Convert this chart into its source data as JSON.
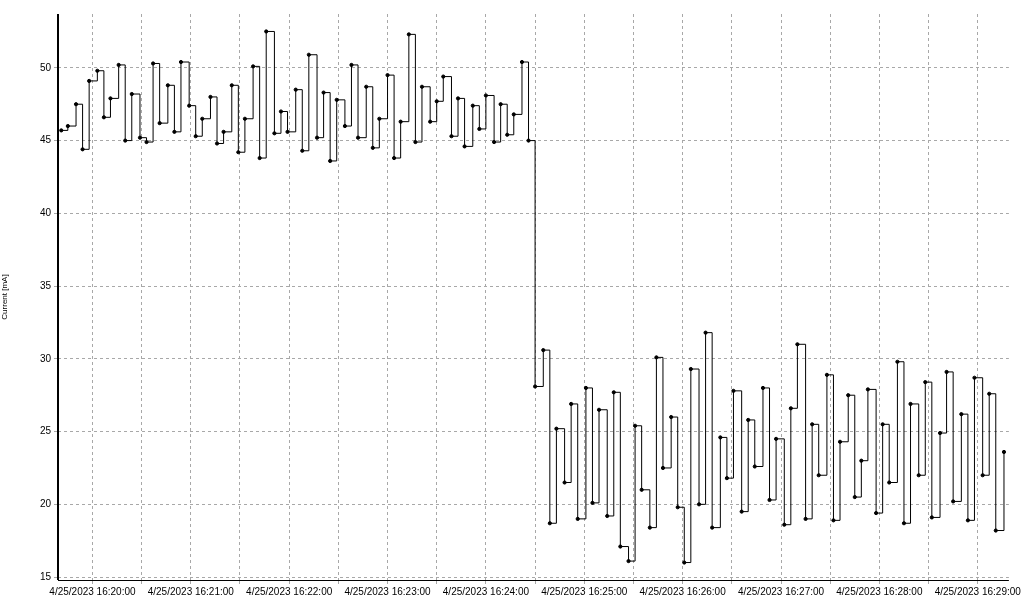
{
  "chart_data": {
    "type": "step",
    "ylabel": "Current [mA]",
    "marker": "circle",
    "grid": true,
    "legend": false,
    "xlim": [
      "2023-04-25T16:19:39",
      "2023-04-25T16:29:19"
    ],
    "ylim": [
      14.8,
      53.7
    ],
    "yticks": [
      15,
      20,
      25,
      30,
      35,
      40,
      45,
      50
    ],
    "xticks": [
      {
        "value": "2023-04-25T16:20:00",
        "label": "4/25/2023 16:20:00"
      },
      {
        "value": "2023-04-25T16:20:30",
        "label": null
      },
      {
        "value": "2023-04-25T16:21:00",
        "label": "4/25/2023 16:21:00"
      },
      {
        "value": "2023-04-25T16:21:30",
        "label": null
      },
      {
        "value": "2023-04-25T16:22:00",
        "label": "4/25/2023 16:22:00"
      },
      {
        "value": "2023-04-25T16:22:30",
        "label": null
      },
      {
        "value": "2023-04-25T16:23:00",
        "label": "4/25/2023 16:23:00"
      },
      {
        "value": "2023-04-25T16:23:30",
        "label": null
      },
      {
        "value": "2023-04-25T16:24:00",
        "label": "4/25/2023 16:24:00"
      },
      {
        "value": "2023-04-25T16:24:30",
        "label": null
      },
      {
        "value": "2023-04-25T16:25:00",
        "label": "4/25/2023 16:25:00"
      },
      {
        "value": "2023-04-25T16:25:30",
        "label": null
      },
      {
        "value": "2023-04-25T16:26:00",
        "label": "4/25/2023 16:26:00"
      },
      {
        "value": "2023-04-25T16:26:30",
        "label": null
      },
      {
        "value": "2023-04-25T16:27:00",
        "label": "4/25/2023 16:27:00"
      },
      {
        "value": "2023-04-25T16:27:30",
        "label": null
      },
      {
        "value": "2023-04-25T16:28:00",
        "label": "4/25/2023 16:28:00"
      },
      {
        "value": "2023-04-25T16:28:30",
        "label": null
      },
      {
        "value": "2023-04-25T16:29:00",
        "label": "4/25/2023 16:29:00"
      }
    ],
    "series": [
      {
        "color": "#000000",
        "x": [
          "2023-04-25T16:19:41",
          "2023-04-25T16:19:45",
          "2023-04-25T16:19:50",
          "2023-04-25T16:19:54",
          "2023-04-25T16:19:58",
          "2023-04-25T16:20:03",
          "2023-04-25T16:20:07",
          "2023-04-25T16:20:11",
          "2023-04-25T16:20:16",
          "2023-04-25T16:20:20",
          "2023-04-25T16:20:24",
          "2023-04-25T16:20:29",
          "2023-04-25T16:20:33",
          "2023-04-25T16:20:37",
          "2023-04-25T16:20:41",
          "2023-04-25T16:20:46",
          "2023-04-25T16:20:50",
          "2023-04-25T16:20:54",
          "2023-04-25T16:20:59",
          "2023-04-25T16:21:03",
          "2023-04-25T16:21:07",
          "2023-04-25T16:21:12",
          "2023-04-25T16:21:16",
          "2023-04-25T16:21:20",
          "2023-04-25T16:21:25",
          "2023-04-25T16:21:29",
          "2023-04-25T16:21:33",
          "2023-04-25T16:21:38",
          "2023-04-25T16:21:42",
          "2023-04-25T16:21:46",
          "2023-04-25T16:21:51",
          "2023-04-25T16:21:55",
          "2023-04-25T16:21:59",
          "2023-04-25T16:22:04",
          "2023-04-25T16:22:08",
          "2023-04-25T16:22:12",
          "2023-04-25T16:22:17",
          "2023-04-25T16:22:21",
          "2023-04-25T16:22:25",
          "2023-04-25T16:22:29",
          "2023-04-25T16:22:34",
          "2023-04-25T16:22:38",
          "2023-04-25T16:22:42",
          "2023-04-25T16:22:47",
          "2023-04-25T16:22:51",
          "2023-04-25T16:22:55",
          "2023-04-25T16:23:00",
          "2023-04-25T16:23:04",
          "2023-04-25T16:23:08",
          "2023-04-25T16:23:13",
          "2023-04-25T16:23:17",
          "2023-04-25T16:23:21",
          "2023-04-25T16:23:26",
          "2023-04-25T16:23:30",
          "2023-04-25T16:23:34",
          "2023-04-25T16:23:39",
          "2023-04-25T16:23:43",
          "2023-04-25T16:23:47",
          "2023-04-25T16:23:52",
          "2023-04-25T16:23:56",
          "2023-04-25T16:24:00",
          "2023-04-25T16:24:05",
          "2023-04-25T16:24:09",
          "2023-04-25T16:24:13",
          "2023-04-25T16:24:17",
          "2023-04-25T16:24:22",
          "2023-04-25T16:24:26",
          "2023-04-25T16:24:30",
          "2023-04-25T16:24:35",
          "2023-04-25T16:24:39",
          "2023-04-25T16:24:43",
          "2023-04-25T16:24:48",
          "2023-04-25T16:24:52",
          "2023-04-25T16:24:56",
          "2023-04-25T16:25:01",
          "2023-04-25T16:25:05",
          "2023-04-25T16:25:09",
          "2023-04-25T16:25:14",
          "2023-04-25T16:25:18",
          "2023-04-25T16:25:22",
          "2023-04-25T16:25:27",
          "2023-04-25T16:25:31",
          "2023-04-25T16:25:35",
          "2023-04-25T16:25:40",
          "2023-04-25T16:25:44",
          "2023-04-25T16:25:48",
          "2023-04-25T16:25:53",
          "2023-04-25T16:25:57",
          "2023-04-25T16:26:01",
          "2023-04-25T16:26:05",
          "2023-04-25T16:26:10",
          "2023-04-25T16:26:14",
          "2023-04-25T16:26:18",
          "2023-04-25T16:26:23",
          "2023-04-25T16:26:27",
          "2023-04-25T16:26:31",
          "2023-04-25T16:26:36",
          "2023-04-25T16:26:40",
          "2023-04-25T16:26:44",
          "2023-04-25T16:26:49",
          "2023-04-25T16:26:53",
          "2023-04-25T16:26:57",
          "2023-04-25T16:27:02",
          "2023-04-25T16:27:06",
          "2023-04-25T16:27:10",
          "2023-04-25T16:27:15",
          "2023-04-25T16:27:19",
          "2023-04-25T16:27:23",
          "2023-04-25T16:27:28",
          "2023-04-25T16:27:32",
          "2023-04-25T16:27:36",
          "2023-04-25T16:27:41",
          "2023-04-25T16:27:45",
          "2023-04-25T16:27:49",
          "2023-04-25T16:27:53",
          "2023-04-25T16:27:58",
          "2023-04-25T16:28:02",
          "2023-04-25T16:28:06",
          "2023-04-25T16:28:11",
          "2023-04-25T16:28:15",
          "2023-04-25T16:28:19",
          "2023-04-25T16:28:24",
          "2023-04-25T16:28:28",
          "2023-04-25T16:28:32",
          "2023-04-25T16:28:37",
          "2023-04-25T16:28:41",
          "2023-04-25T16:28:45",
          "2023-04-25T16:28:50",
          "2023-04-25T16:28:54",
          "2023-04-25T16:28:58",
          "2023-04-25T16:29:03",
          "2023-04-25T16:29:07",
          "2023-04-25T16:29:11",
          "2023-04-25T16:29:16"
        ],
        "values": [
          45.7,
          46.0,
          47.5,
          44.4,
          49.1,
          49.8,
          46.6,
          47.9,
          50.2,
          45.0,
          48.2,
          45.2,
          44.9,
          50.3,
          46.2,
          48.8,
          45.6,
          50.4,
          47.4,
          45.3,
          46.5,
          48.0,
          44.8,
          45.6,
          48.8,
          44.2,
          46.5,
          50.1,
          43.8,
          52.5,
          45.5,
          47.0,
          45.6,
          48.5,
          44.3,
          50.9,
          45.2,
          48.3,
          43.6,
          47.8,
          46.0,
          50.2,
          45.2,
          48.7,
          44.5,
          46.5,
          49.5,
          43.8,
          46.3,
          52.3,
          44.9,
          48.7,
          46.3,
          47.7,
          49.4,
          45.3,
          47.9,
          44.6,
          47.4,
          45.8,
          48.1,
          44.9,
          47.5,
          45.4,
          46.8,
          50.4,
          45.0,
          28.1,
          30.6,
          18.7,
          25.2,
          21.5,
          26.9,
          19.0,
          28.0,
          20.1,
          26.5,
          19.2,
          27.7,
          17.1,
          16.1,
          25.4,
          21.0,
          18.4,
          30.1,
          22.5,
          26.0,
          19.8,
          16.0,
          29.3,
          20.0,
          31.8,
          18.4,
          24.6,
          21.8,
          27.8,
          19.5,
          25.8,
          22.6,
          28.0,
          20.3,
          24.5,
          18.6,
          26.6,
          31.0,
          19.0,
          25.5,
          22.0,
          28.9,
          18.9,
          24.3,
          27.5,
          20.5,
          23.0,
          27.9,
          19.4,
          25.5,
          21.5,
          29.8,
          18.7,
          26.9,
          22.0,
          28.4,
          19.1,
          24.9,
          29.1,
          20.2,
          26.2,
          18.9,
          28.7,
          22.0,
          27.6,
          18.2,
          23.6
        ]
      }
    ]
  }
}
